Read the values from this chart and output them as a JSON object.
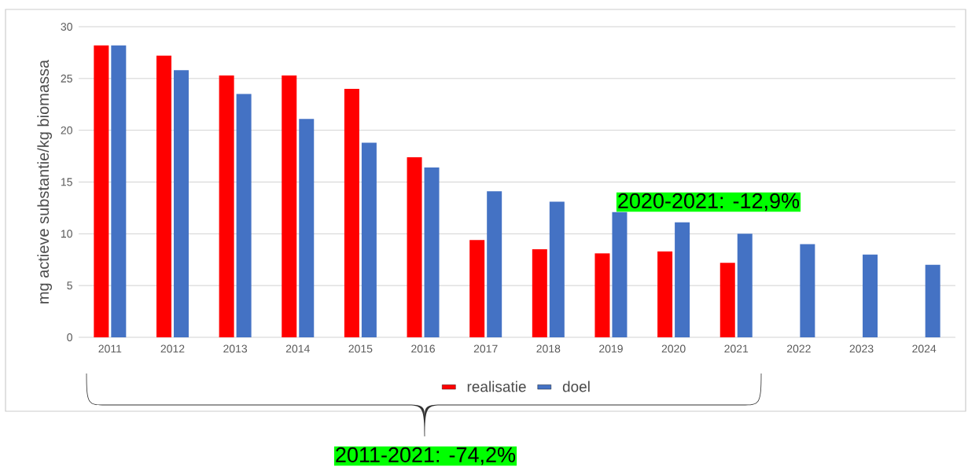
{
  "chart_data": {
    "type": "bar",
    "ylabel": "mg actieve substantie/kg biomassa",
    "categories": [
      "2011",
      "2012",
      "2013",
      "2014",
      "2015",
      "2016",
      "2017",
      "2018",
      "2019",
      "2020",
      "2021",
      "2022",
      "2023",
      "2024"
    ],
    "series": [
      {
        "name": "realisatie",
        "color": "#ff0000",
        "values": [
          28.2,
          27.2,
          25.3,
          25.3,
          24.0,
          17.4,
          9.4,
          8.5,
          8.1,
          8.3,
          7.2,
          null,
          null,
          null
        ]
      },
      {
        "name": "doel",
        "color": "#4472c4",
        "values": [
          28.2,
          25.8,
          23.5,
          21.1,
          18.8,
          16.4,
          14.1,
          13.1,
          12.1,
          11.1,
          10.0,
          9.0,
          8.0,
          7.0
        ]
      }
    ],
    "ylim": [
      0,
      30
    ],
    "yticks": [
      0,
      5,
      10,
      15,
      20,
      25,
      30
    ],
    "grid": "y",
    "legend": "bottom",
    "annotations": [
      "2020-2021: -12,9%",
      "2011-2021: -74,2%"
    ]
  }
}
